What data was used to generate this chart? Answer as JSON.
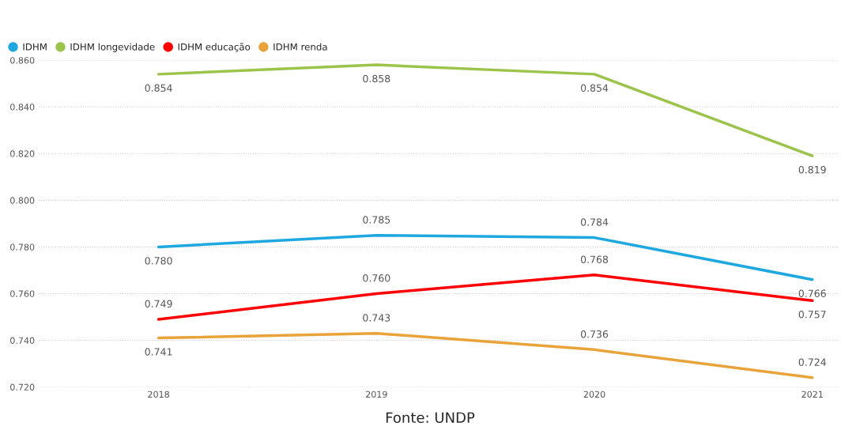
{
  "chart_data": {
    "type": "line",
    "categories": [
      "2018",
      "2019",
      "2020",
      "2021"
    ],
    "series": [
      {
        "name": "IDHM",
        "color": "#1fa8e0",
        "values": [
          0.78,
          0.785,
          0.784,
          0.766
        ],
        "value_labels": [
          "0.780",
          "0.785",
          "0.784",
          "0.766"
        ]
      },
      {
        "name": "IDHM longevidade",
        "color": "#9cc44c",
        "values": [
          0.854,
          0.858,
          0.854,
          0.819
        ],
        "value_labels": [
          "0.854",
          "0.858",
          "0.854",
          "0.819"
        ]
      },
      {
        "name": "IDHM educação",
        "color": "#ff0000",
        "values": [
          0.749,
          0.76,
          0.768,
          0.757
        ],
        "value_labels": [
          "0.749",
          "0.760",
          "0.768",
          "0.757"
        ]
      },
      {
        "name": "IDHM renda",
        "color": "#e8a33a",
        "values": [
          0.741,
          0.743,
          0.736,
          0.724
        ],
        "value_labels": [
          "0.741",
          "0.743",
          "0.736",
          "0.724"
        ]
      }
    ],
    "ylim": [
      0.72,
      0.86
    ],
    "yticks": [
      {
        "value": 0.72,
        "label": "0.720"
      },
      {
        "value": 0.74,
        "label": "0.740"
      },
      {
        "value": 0.76,
        "label": "0.760"
      },
      {
        "value": 0.78,
        "label": "0.780"
      },
      {
        "value": 0.8,
        "label": "0.800"
      },
      {
        "value": 0.82,
        "label": "0.820"
      },
      {
        "value": 0.84,
        "label": "0.840"
      },
      {
        "value": 0.86,
        "label": "0.860"
      }
    ],
    "grid": "y",
    "legend": "top left",
    "marker": "none",
    "line_style": "solid",
    "annotations": [
      "Fonte: UNDP"
    ]
  }
}
